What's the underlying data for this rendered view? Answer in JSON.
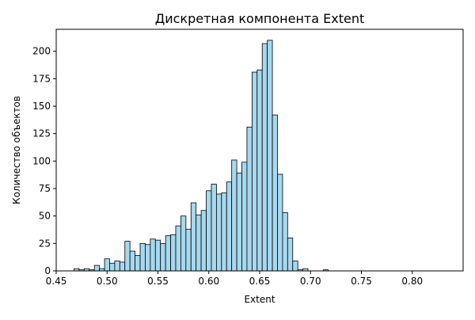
{
  "chart_data": {
    "type": "bar",
    "subtype": "histogram",
    "title": "Дискретная компонента Extent",
    "xlabel": "Extent",
    "ylabel": "Количество объектов",
    "xlim": [
      0.45,
      0.85
    ],
    "ylim": [
      0,
      220
    ],
    "x_ticks": [
      "0.45",
      "0.50",
      "0.55",
      "0.60",
      "0.65",
      "0.70",
      "0.75",
      "0.80"
    ],
    "y_ticks": [
      "0",
      "25",
      "50",
      "75",
      "100",
      "125",
      "150",
      "175",
      "200"
    ],
    "bin_start": 0.4675,
    "bin_width": 0.005,
    "values": [
      2,
      1,
      2,
      1,
      5,
      2,
      11,
      7,
      9,
      8,
      27,
      18,
      14,
      25,
      24,
      29,
      28,
      25,
      32,
      33,
      41,
      50,
      38,
      62,
      51,
      55,
      73,
      79,
      70,
      71,
      81,
      101,
      89,
      99,
      131,
      181,
      183,
      207,
      210,
      142,
      88,
      53,
      30,
      9,
      1,
      2,
      0,
      0,
      0,
      1
    ],
    "bar_color": "#a6d8ee",
    "edge_color": "#000000",
    "grid": false,
    "legend": "none"
  }
}
